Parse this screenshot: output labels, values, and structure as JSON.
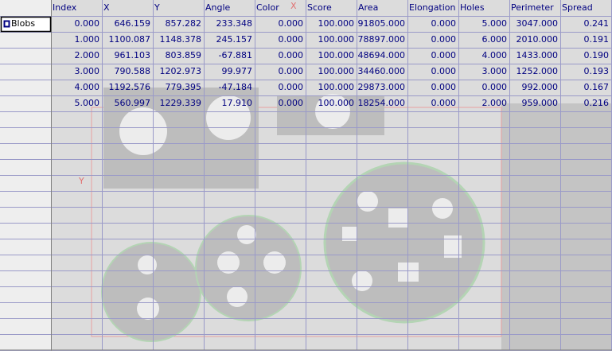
{
  "grid": {
    "columns": [
      "Index",
      "X",
      "Y",
      "Angle",
      "Color",
      "Score",
      "Area",
      "Elongation",
      "Holes",
      "Perimeter",
      "Spread"
    ],
    "row_label": "Blobs",
    "rows": [
      [
        "0.000",
        "646.159",
        "857.282",
        "233.348",
        "0.000",
        "100.000",
        "91805.000",
        "0.000",
        "5.000",
        "3047.000",
        "0.241"
      ],
      [
        "1.000",
        "1100.087",
        "1148.378",
        "245.157",
        "0.000",
        "100.000",
        "78897.000",
        "0.000",
        "6.000",
        "2010.000",
        "0.191"
      ],
      [
        "2.000",
        "961.103",
        "803.859",
        "-67.881",
        "0.000",
        "100.000",
        "48694.000",
        "0.000",
        "4.000",
        "1433.000",
        "0.190"
      ],
      [
        "3.000",
        "790.588",
        "1202.973",
        "99.977",
        "0.000",
        "100.000",
        "34460.000",
        "0.000",
        "3.000",
        "1252.000",
        "0.193"
      ],
      [
        "4.000",
        "1192.576",
        "779.395",
        "-47.184",
        "0.000",
        "100.000",
        "29873.000",
        "0.000",
        "0.000",
        "992.000",
        "0.167"
      ],
      [
        "5.000",
        "560.997",
        "1229.339",
        "17.910",
        "0.000",
        "100.000",
        "18254.000",
        "0.000",
        "2.000",
        "959.000",
        "0.216"
      ]
    ]
  },
  "image_axes": {
    "x_label": "X",
    "y_label": "Y"
  }
}
